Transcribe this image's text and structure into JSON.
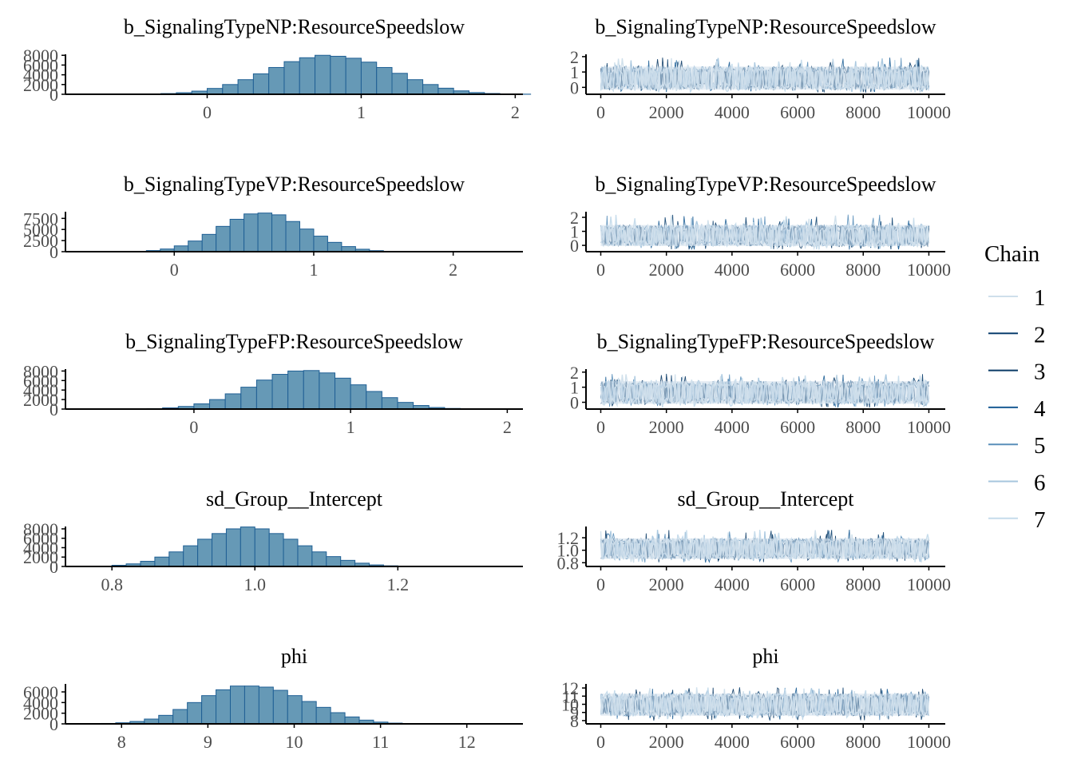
{
  "colors": {
    "hist_fill": "#6699b6",
    "hist_edge": "#1f5f94",
    "axis": "#000000",
    "tick_label": "#4d4d4d",
    "chains": [
      "#cfdfeb",
      "#0b3f6e",
      "#0a3a66",
      "#1a5c94",
      "#5a8fba",
      "#a6c6de",
      "#c5dbeb"
    ]
  },
  "legend": {
    "title": "Chain",
    "labels": [
      "1",
      "2",
      "3",
      "4",
      "5",
      "6",
      "7"
    ]
  },
  "chart_data": [
    {
      "type": "bar",
      "subtype": "histogram",
      "title": "b_SignalingTypeNP:ResourceSpeedslow",
      "xlim": [
        -0.92,
        2.05
      ],
      "ylim": [
        0,
        8200
      ],
      "xticks": [
        0,
        1,
        2
      ],
      "xtick_labels": [
        "0",
        "1",
        "2"
      ],
      "yticks": [
        0,
        2000,
        4000,
        6000,
        8000
      ],
      "ytick_labels": [
        "0",
        "2000",
        "4000",
        "6000",
        "8000"
      ],
      "bin_start": -0.5,
      "bin_width": 0.1,
      "counts": [
        20,
        60,
        150,
        320,
        650,
        1200,
        2000,
        3000,
        4200,
        5500,
        6700,
        7500,
        8000,
        7800,
        7400,
        6600,
        5500,
        4300,
        3000,
        2000,
        1250,
        700,
        350,
        160,
        70,
        25
      ]
    },
    {
      "type": "line",
      "subtype": "trace",
      "title": "b_SignalingTypeNP:ResourceSpeedslow",
      "xlim": [
        -450,
        10500
      ],
      "ylim": [
        -0.45,
        2.15
      ],
      "xticks": [
        0,
        2000,
        4000,
        6000,
        8000,
        10000
      ],
      "xtick_labels": [
        "0",
        "2000",
        "4000",
        "6000",
        "8000",
        "10000"
      ],
      "yticks": [
        0,
        1,
        2
      ],
      "ytick_labels": [
        "0",
        "1",
        "2"
      ],
      "iterations": 10000,
      "center": 0.6,
      "band_low": -0.15,
      "band_high": 1.35,
      "extreme_low": -0.35,
      "extreme_high": 1.95
    },
    {
      "type": "bar",
      "subtype": "histogram",
      "title": "b_SignalingTypeVP:ResourceSpeedslow",
      "xlim": [
        -0.78,
        2.5
      ],
      "ylim": [
        0,
        9000
      ],
      "xticks": [
        0,
        1,
        2
      ],
      "xtick_labels": [
        "0",
        "1",
        "2"
      ],
      "yticks": [
        0,
        2500,
        5000,
        7500
      ],
      "ytick_labels": [
        "0",
        "2500",
        "5000",
        "7500"
      ],
      "bin_start": -0.4,
      "bin_width": 0.1,
      "counts": [
        30,
        90,
        250,
        600,
        1300,
        2400,
        3900,
        5700,
        7300,
        8500,
        8700,
        8300,
        6800,
        5100,
        3500,
        2100,
        1150,
        550,
        230,
        80,
        25
      ]
    },
    {
      "type": "line",
      "subtype": "trace",
      "title": "b_SignalingTypeVP:ResourceSpeedslow",
      "xlim": [
        -450,
        10500
      ],
      "ylim": [
        -0.45,
        2.4
      ],
      "xticks": [
        0,
        2000,
        4000,
        6000,
        8000,
        10000
      ],
      "xtick_labels": [
        "0",
        "2000",
        "4000",
        "6000",
        "8000",
        "10000"
      ],
      "yticks": [
        0,
        1,
        2
      ],
      "ytick_labels": [
        "0",
        "1",
        "2"
      ],
      "iterations": 10000,
      "center": 0.7,
      "band_low": -0.05,
      "band_high": 1.45,
      "extreme_low": -0.3,
      "extreme_high": 2.2
    },
    {
      "type": "bar",
      "subtype": "histogram",
      "title": "b_SignalingTypeFP:ResourceSpeedslow",
      "xlim": [
        -0.82,
        2.1
      ],
      "ylim": [
        0,
        8400
      ],
      "xticks": [
        0,
        1,
        2
      ],
      "xtick_labels": [
        "0",
        "1",
        "2"
      ],
      "yticks": [
        0,
        2000,
        4000,
        6000,
        8000
      ],
      "ytick_labels": [
        "0",
        "2000",
        "4000",
        "6000",
        "8000"
      ],
      "bin_start": -0.4,
      "bin_width": 0.1,
      "counts": [
        30,
        100,
        250,
        550,
        1100,
        2000,
        3200,
        4600,
        6100,
        7300,
        8000,
        8100,
        7600,
        6500,
        5100,
        3700,
        2400,
        1400,
        750,
        330,
        130,
        40
      ]
    },
    {
      "type": "line",
      "subtype": "trace",
      "title": "b_SignalingTypeFP:ResourceSpeedslow",
      "xlim": [
        -450,
        10500
      ],
      "ylim": [
        -0.45,
        2.2
      ],
      "xticks": [
        0,
        2000,
        4000,
        6000,
        8000,
        10000
      ],
      "xtick_labels": [
        "0",
        "2000",
        "4000",
        "6000",
        "8000",
        "10000"
      ],
      "yticks": [
        0,
        1,
        2
      ],
      "ytick_labels": [
        "0",
        "1",
        "2"
      ],
      "iterations": 10000,
      "center": 0.65,
      "band_low": -0.1,
      "band_high": 1.4,
      "extreme_low": -0.35,
      "extreme_high": 1.9
    },
    {
      "type": "bar",
      "subtype": "histogram",
      "title": "sd_Group__Intercept",
      "xlim": [
        0.735,
        1.375
      ],
      "ylim": [
        0,
        8500
      ],
      "xticks": [
        0.8,
        1.0,
        1.2
      ],
      "xtick_labels": [
        "0.8",
        "1.0",
        "1.2"
      ],
      "yticks": [
        0,
        2000,
        4000,
        6000,
        8000
      ],
      "ytick_labels": [
        "0",
        "2000",
        "4000",
        "6000",
        "8000"
      ],
      "bin_start": 0.76,
      "bin_width": 0.02,
      "counts": [
        20,
        80,
        250,
        550,
        1100,
        2000,
        3100,
        4400,
        5800,
        7000,
        8000,
        8400,
        8000,
        7000,
        5800,
        4400,
        3100,
        2100,
        1300,
        700,
        330,
        140,
        60,
        20
      ]
    },
    {
      "type": "line",
      "subtype": "trace",
      "title": "sd_Group__Intercept",
      "xlim": [
        -450,
        10500
      ],
      "ylim": [
        0.74,
        1.38
      ],
      "xticks": [
        0,
        2000,
        4000,
        6000,
        8000,
        10000
      ],
      "xtick_labels": [
        "0",
        "2000",
        "4000",
        "6000",
        "8000",
        "10000"
      ],
      "yticks": [
        0.8,
        1.0,
        1.2
      ],
      "ytick_labels": [
        "0.8",
        "1.0",
        "1.2"
      ],
      "iterations": 10000,
      "center": 1.02,
      "band_low": 0.86,
      "band_high": 1.19,
      "extreme_low": 0.8,
      "extreme_high": 1.33
    },
    {
      "type": "bar",
      "subtype": "histogram",
      "title": "phi",
      "xlim": [
        7.35,
        12.65
      ],
      "ylim": [
        0,
        7500
      ],
      "xticks": [
        8,
        9,
        10,
        11,
        12
      ],
      "xtick_labels": [
        "8",
        "9",
        "10",
        "11",
        "12"
      ],
      "yticks": [
        0,
        2000,
        4000,
        6000
      ],
      "ytick_labels": [
        "0",
        "2000",
        "4000",
        "6000"
      ],
      "bin_start": 7.6,
      "bin_width": 0.166,
      "counts": [
        30,
        80,
        200,
        450,
        900,
        1600,
        2700,
        4000,
        5300,
        6400,
        7100,
        7100,
        6900,
        6300,
        5300,
        4200,
        3100,
        2100,
        1300,
        700,
        330,
        140,
        50,
        20
      ]
    },
    {
      "type": "line",
      "subtype": "trace",
      "title": "phi",
      "xlim": [
        -450,
        10500
      ],
      "ylim": [
        7.6,
        12.5
      ],
      "xticks": [
        0,
        2000,
        4000,
        6000,
        8000,
        10000
      ],
      "xtick_labels": [
        "0",
        "2000",
        "4000",
        "6000",
        "8000",
        "10000"
      ],
      "yticks": [
        8,
        9,
        10,
        11,
        12
      ],
      "ytick_labels": [
        "8",
        "9",
        "10",
        "11",
        "12"
      ],
      "iterations": 10000,
      "center": 9.9,
      "band_low": 8.6,
      "band_high": 11.3,
      "extreme_low": 8.0,
      "extreme_high": 12.1
    }
  ]
}
